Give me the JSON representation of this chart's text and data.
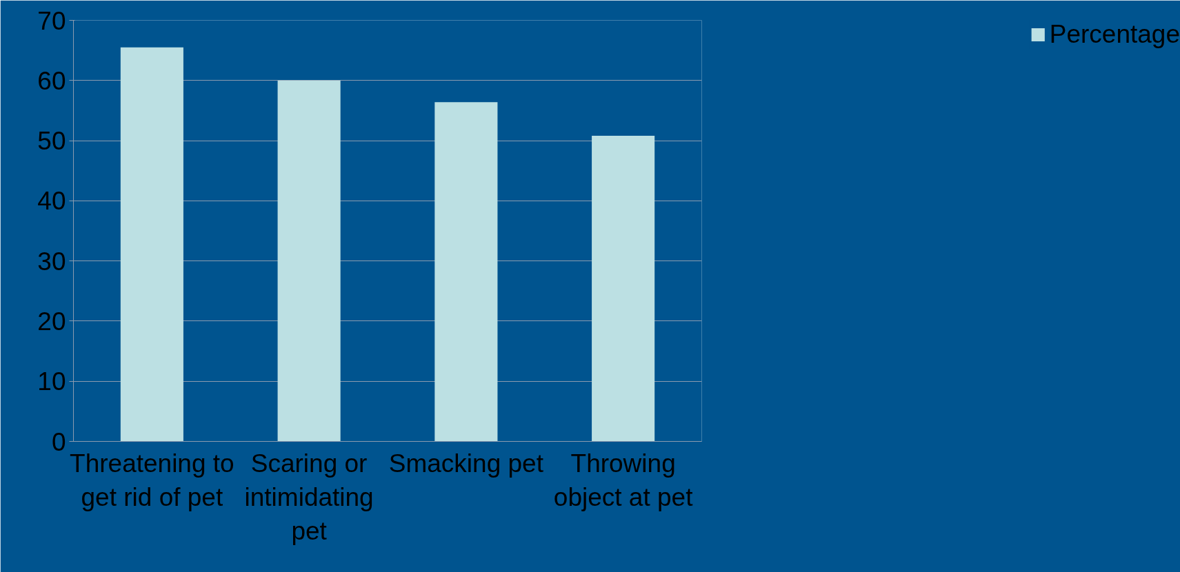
{
  "chart_data": {
    "type": "bar",
    "categories": [
      "Threatening to get rid of pet",
      "Scaring or intimidating pet",
      "Smacking pet",
      "Throwing object at pet"
    ],
    "series": [
      {
        "name": "Percentage",
        "color": "#bce0e3",
        "values": [
          65.5,
          60,
          56.4,
          50.8
        ]
      }
    ],
    "ylim": [
      0,
      70
    ],
    "yticks": [
      0,
      10,
      20,
      30,
      40,
      50,
      60,
      70
    ],
    "grid": "y",
    "legend": "right"
  }
}
